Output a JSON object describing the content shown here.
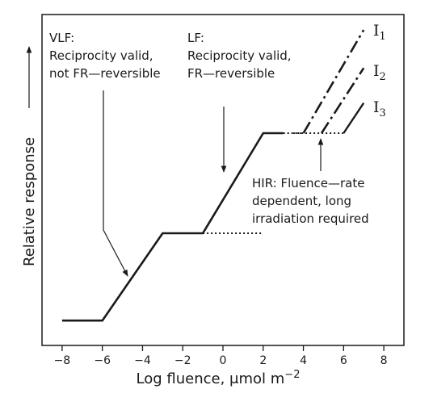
{
  "chart_data": {
    "type": "line",
    "title": "",
    "xlabel": "Log fluence, μmol m⁻²",
    "ylabel": "Relative response",
    "xlim": [
      -9,
      9
    ],
    "ylim": [
      0,
      10
    ],
    "xticks": [
      -8,
      -6,
      -4,
      -2,
      0,
      2,
      4,
      6,
      8
    ],
    "grid": false,
    "series": [
      {
        "style": "solid",
        "points": [
          [
            -8,
            0.25
          ],
          [
            -6,
            0.25
          ],
          [
            -3,
            3.0
          ],
          [
            -1,
            3.0
          ],
          [
            2,
            6.15
          ],
          [
            3,
            6.15
          ]
        ]
      },
      {
        "style": "dotted",
        "points": [
          [
            -1,
            3.0
          ],
          [
            2,
            3.0
          ]
        ]
      },
      {
        "style": "dotted",
        "points": [
          [
            3,
            6.15
          ],
          [
            4,
            6.15
          ]
        ]
      },
      {
        "name": "I1",
        "style": "dash-dot",
        "points": [
          [
            4,
            6.15
          ],
          [
            7.0,
            9.4
          ]
        ]
      },
      {
        "name": "I2",
        "style": "dash-dot",
        "points": [
          [
            4.9,
            6.15
          ],
          [
            7.0,
            8.2
          ]
        ]
      },
      {
        "name": "I3",
        "style": "dotted-solid",
        "points": [
          [
            3.5,
            6.15
          ],
          [
            6.0,
            6.15
          ],
          [
            7.0,
            7.1
          ]
        ]
      }
    ],
    "series_labels": [
      {
        "main": "I",
        "sub": "1"
      },
      {
        "main": "I",
        "sub": "2"
      },
      {
        "main": "I",
        "sub": "3"
      }
    ],
    "annotations": {
      "vlf": [
        "VLF:",
        "Reciprocity valid,",
        "not FR—reversible"
      ],
      "lf": [
        "LF:",
        "Reciprocity valid,",
        "FR—reversible"
      ],
      "hir": [
        "HIR: Fluence—rate",
        "dependent, long",
        "irradiation required"
      ]
    }
  }
}
